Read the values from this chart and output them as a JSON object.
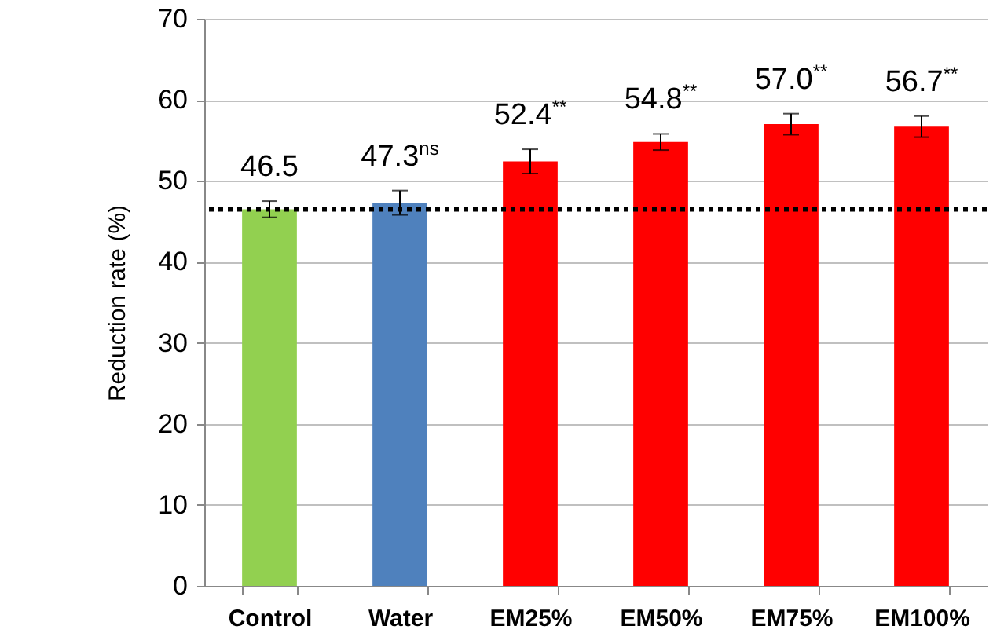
{
  "chart_data": {
    "type": "bar",
    "ylabel": "Reduction rate (%)",
    "categories": [
      "Control",
      "Water",
      "EM25%",
      "EM50%",
      "EM75%",
      "EM100%"
    ],
    "values": [
      46.5,
      47.3,
      52.4,
      54.8,
      57.0,
      56.7
    ],
    "colors": [
      "#92d050",
      "#4f81bd",
      "#ff0000",
      "#ff0000",
      "#ff0000",
      "#ff0000"
    ],
    "errors": [
      1.0,
      1.5,
      1.5,
      1.0,
      1.3,
      1.3
    ],
    "value_labels": [
      "46.5",
      "47.3$^{ns}$",
      "52.4$^{**}$",
      "54.8$^{**}$",
      "57.0$^{**}$",
      "56.7$^{**}$"
    ],
    "ref_lines": [
      {
        "axis": "y",
        "value": 46.5,
        "color": "#000000",
        "line_style": "dotted"
      }
    ],
    "ylim": [
      0,
      70
    ],
    "yticks": [
      0,
      10,
      20,
      30,
      40,
      50,
      60,
      70
    ],
    "grid": "y"
  }
}
